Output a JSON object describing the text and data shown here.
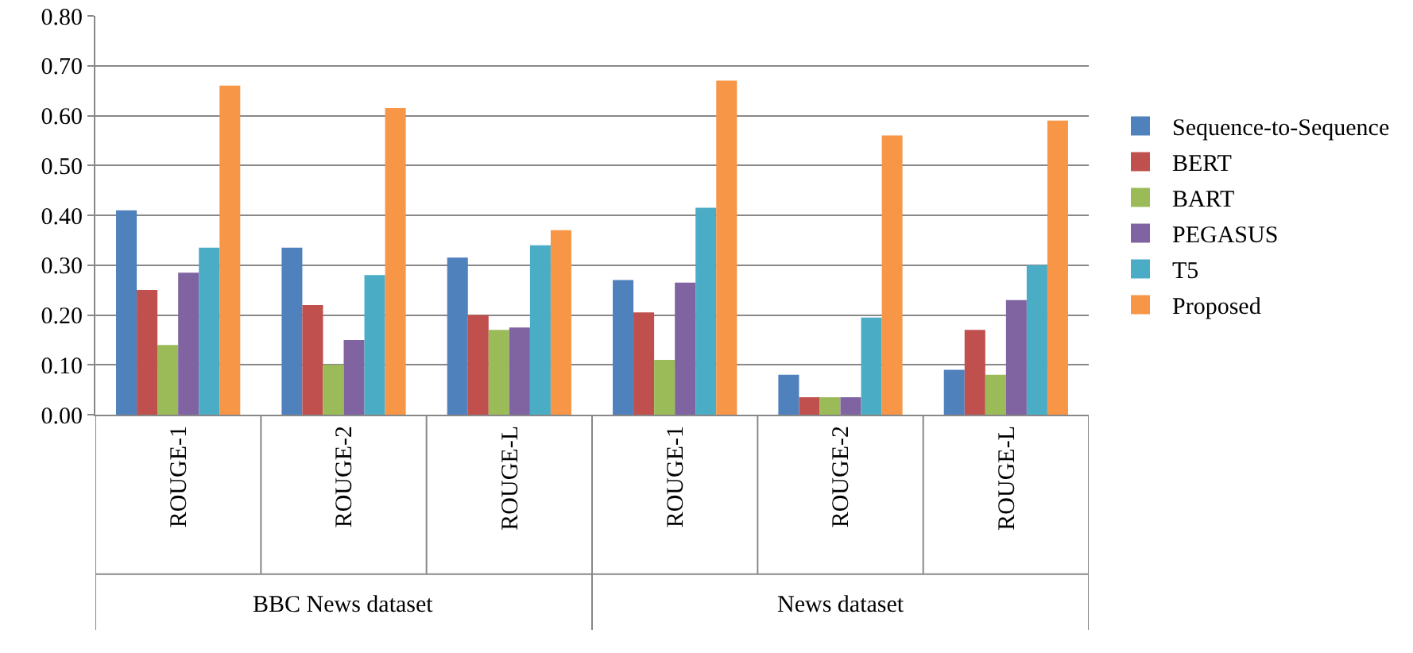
{
  "chart_data": {
    "type": "bar",
    "categories": [
      "ROUGE-1",
      "ROUGE-2",
      "ROUGE-L",
      "ROUGE-1",
      "ROUGE-2",
      "ROUGE-L"
    ],
    "annotations": [
      "BBC News dataset",
      "News dataset"
    ],
    "series": [
      {
        "name": "Sequence-to-Sequence",
        "color": "#4f81bd",
        "values": [
          0.41,
          0.335,
          0.315,
          0.27,
          0.08,
          0.09
        ]
      },
      {
        "name": "BERT",
        "color": "#c0504d",
        "values": [
          0.25,
          0.22,
          0.2,
          0.205,
          0.035,
          0.17
        ]
      },
      {
        "name": "BART",
        "color": "#9bbb59",
        "values": [
          0.14,
          0.1,
          0.17,
          0.11,
          0.035,
          0.08
        ]
      },
      {
        "name": "PEGASUS",
        "color": "#8064a2",
        "values": [
          0.285,
          0.15,
          0.175,
          0.265,
          0.035,
          0.23
        ]
      },
      {
        "name": "T5",
        "color": "#4bacc6",
        "values": [
          0.335,
          0.28,
          0.34,
          0.415,
          0.195,
          0.3
        ]
      },
      {
        "name": "Proposed",
        "color": "#f79646",
        "values": [
          0.66,
          0.615,
          0.37,
          0.67,
          0.56,
          0.59
        ]
      }
    ],
    "ylim": [
      0,
      0.8
    ],
    "yticks": [
      {
        "value": 0,
        "label": "0.00"
      },
      {
        "value": 0.1,
        "label": "0.10"
      },
      {
        "value": 0.2,
        "label": "0.20"
      },
      {
        "value": 0.3,
        "label": "0.30"
      },
      {
        "value": 0.4,
        "label": "0.40"
      },
      {
        "value": 0.5,
        "label": "0.50"
      },
      {
        "value": 0.6,
        "label": "0.60"
      },
      {
        "value": 0.7,
        "label": "0.70"
      },
      {
        "value": 0.8,
        "label": "0.80"
      }
    ],
    "grid": "y",
    "legend": "right"
  }
}
